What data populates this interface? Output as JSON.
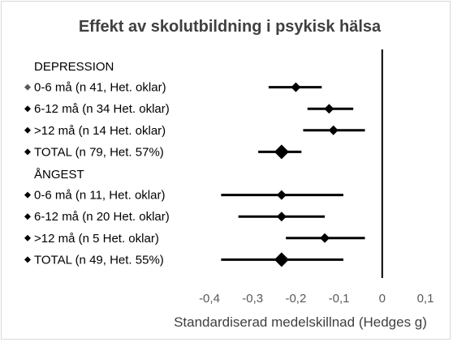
{
  "chart_data": {
    "type": "forest",
    "title": "Effekt av skolutbildning i psykisk hälsa",
    "xlabel": "Standardiserad medelskillnad (Hedges g)",
    "xlim": [
      -0.4,
      0.1
    ],
    "xticks": [
      -0.4,
      -0.3,
      -0.2,
      -0.1,
      0,
      0.1
    ],
    "xtick_labels": [
      "-0,4",
      "-0,3",
      "-0,2",
      "-0,1",
      "0",
      "0,1"
    ],
    "reference_line": 0,
    "groups": [
      {
        "heading": "DEPRESSION",
        "rows": [
          {
            "label": "0-6 må (n 41, Het. oklar)",
            "estimate": -0.2,
            "ci_low": -0.263,
            "ci_high": -0.14,
            "total": false
          },
          {
            "label": "6-12 må (n 34 Het. oklar)",
            "estimate": -0.123,
            "ci_low": -0.173,
            "ci_high": -0.067,
            "total": false
          },
          {
            "label": ">12 må (n 14 Het. oklar)",
            "estimate": -0.113,
            "ci_low": -0.183,
            "ci_high": -0.04,
            "total": false
          },
          {
            "label": "TOTAL (n 79, Het. 57%)",
            "estimate": -0.233,
            "ci_low": -0.287,
            "ci_high": -0.187,
            "total": true
          }
        ]
      },
      {
        "heading": "ÅNGEST",
        "rows": [
          {
            "label": "0-6 må (n 11, Het. oklar)",
            "estimate": -0.233,
            "ci_low": -0.373,
            "ci_high": -0.09,
            "total": false
          },
          {
            "label": "6-12 må (n 20 Het. oklar)",
            "estimate": -0.233,
            "ci_low": -0.333,
            "ci_high": -0.133,
            "total": false
          },
          {
            "label": ">12 må (n 5 Het. oklar)",
            "estimate": -0.133,
            "ci_low": -0.223,
            "ci_high": -0.04,
            "total": false
          },
          {
            "label": "TOTAL (n 49, Het. 55%)",
            "estimate": -0.233,
            "ci_low": -0.373,
            "ci_high": -0.09,
            "total": true
          }
        ]
      }
    ],
    "colors": {
      "marker": "#000000",
      "legend_marker": "#595959",
      "text": "#000000",
      "title": "#404040",
      "tick": "#595959",
      "border": "#d9d9d9"
    }
  }
}
